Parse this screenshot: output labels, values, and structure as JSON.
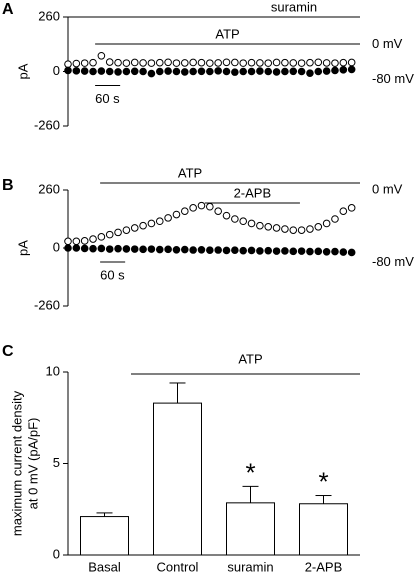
{
  "chart_data": [
    {
      "type": "scatter",
      "panel": "A",
      "ylabel": "pA",
      "xlim": [
        0,
        700
      ],
      "ylim": [
        -260,
        260
      ],
      "yticks": [
        260,
        0,
        -260
      ],
      "x": [
        0,
        20,
        40,
        60,
        80,
        100,
        120,
        140,
        160,
        180,
        200,
        220,
        240,
        260,
        280,
        300,
        320,
        340,
        360,
        380,
        400,
        420,
        440,
        460,
        480,
        500,
        520,
        540,
        560,
        580,
        600,
        620,
        640,
        660,
        680
      ],
      "series": [
        {
          "name": "0 mV",
          "color": "#000000",
          "marker": "open",
          "values": [
            35,
            38,
            40,
            42,
            75,
            45,
            42,
            40,
            43,
            41,
            40,
            42,
            44,
            40,
            41,
            43,
            42,
            40,
            41,
            44,
            43,
            40,
            42,
            41,
            40,
            43,
            42,
            41,
            40,
            42,
            44,
            41,
            40,
            42,
            43
          ]
        },
        {
          "name": "-80 mV",
          "color": "#000000",
          "marker": "filled",
          "values": [
            5,
            3,
            2,
            0,
            2,
            0,
            -2,
            0,
            1,
            0,
            -10,
            0,
            2,
            0,
            -2,
            0,
            1,
            0,
            3,
            0,
            -3,
            0,
            0,
            2,
            0,
            -2,
            0,
            1,
            0,
            -8,
            0,
            2,
            5,
            8,
            10
          ]
        }
      ],
      "bars": [
        {
          "label": "suramin",
          "start": 0,
          "end": 700
        },
        {
          "label": "ATP",
          "start": 65,
          "end": 700
        }
      ],
      "scale_bar": {
        "value": 60,
        "label": "60 s",
        "start": 65
      }
    },
    {
      "type": "scatter",
      "panel": "B",
      "ylabel": "pA",
      "xlim": [
        0,
        700
      ],
      "ylim": [
        -260,
        260
      ],
      "yticks": [
        260,
        0,
        -260
      ],
      "x": [
        0,
        20,
        40,
        60,
        80,
        100,
        120,
        140,
        160,
        180,
        200,
        220,
        240,
        260,
        280,
        300,
        320,
        340,
        360,
        380,
        400,
        420,
        440,
        460,
        480,
        500,
        520,
        540,
        560,
        580,
        600,
        620,
        640,
        660,
        680
      ],
      "series": [
        {
          "name": "0 mV",
          "color": "#000000",
          "marker": "open",
          "values": [
            30,
            30,
            32,
            40,
            50,
            60,
            70,
            80,
            90,
            100,
            110,
            120,
            135,
            150,
            165,
            180,
            190,
            185,
            165,
            145,
            130,
            120,
            110,
            100,
            95,
            90,
            85,
            80,
            80,
            85,
            95,
            110,
            130,
            165,
            180
          ]
        },
        {
          "name": "-80 mV",
          "color": "#000000",
          "marker": "filled",
          "values": [
            0,
            0,
            -2,
            -3,
            -2,
            -5,
            -3,
            -4,
            -5,
            -6,
            -5,
            -7,
            -6,
            -8,
            -7,
            -9,
            -8,
            -10,
            -9,
            -11,
            -10,
            -12,
            -11,
            -13,
            -12,
            -14,
            -13,
            -15,
            -14,
            -16,
            -15,
            -17,
            -16,
            -18,
            -20
          ]
        }
      ],
      "bars": [
        {
          "label": "ATP",
          "start": 77,
          "end": 700
        },
        {
          "label": "2-APB",
          "start": 328,
          "end": 556
        }
      ],
      "scale_bar": {
        "value": 60,
        "label": "60 s",
        "start": 77
      }
    },
    {
      "type": "bar",
      "panel": "C",
      "ylabel": [
        "maximum current density",
        "at 0 mV (pA/pF)"
      ],
      "annotation": "ATP",
      "categories": [
        "Basal",
        "Control",
        "suramin",
        "2-APB"
      ],
      "values": [
        2.1,
        8.3,
        2.85,
        2.8
      ],
      "errors": [
        0.2,
        1.1,
        0.9,
        0.45
      ],
      "significance": [
        null,
        null,
        "*",
        "*"
      ],
      "color": "#ffffff",
      "ylim": [
        0,
        10
      ],
      "yticks": [
        0,
        5,
        10
      ]
    }
  ]
}
